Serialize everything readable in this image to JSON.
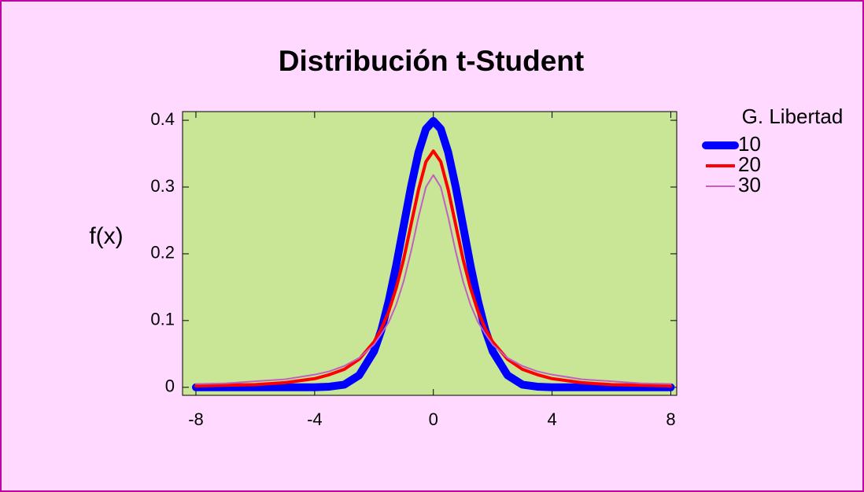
{
  "chart_data": {
    "type": "line",
    "title": "Distribución t-Student",
    "ylabel": "f(x)",
    "legend_title": "G. Libertad",
    "legend": "right",
    "x": [
      -8,
      -7,
      -6,
      -5,
      -4,
      -3.5,
      -3,
      -2.5,
      -2,
      -1.75,
      -1.5,
      -1.25,
      -1,
      -0.75,
      -0.5,
      -0.25,
      0,
      0.25,
      0.5,
      0.75,
      1,
      1.25,
      1.5,
      1.75,
      2,
      2.5,
      3,
      3.5,
      4,
      5,
      6,
      7,
      8
    ],
    "series": [
      {
        "name": "10",
        "color": "#0000ff",
        "line_width": 10,
        "values": [
          0,
          0,
          0,
          0,
          0,
          0.001,
          0.004,
          0.018,
          0.054,
          0.086,
          0.13,
          0.183,
          0.242,
          0.301,
          0.352,
          0.387,
          0.399,
          0.387,
          0.352,
          0.301,
          0.242,
          0.183,
          0.13,
          0.086,
          0.054,
          0.018,
          0.004,
          0.001,
          0,
          0,
          0,
          0,
          0
        ]
      },
      {
        "name": "20",
        "color": "#ff0000",
        "line_width": 4,
        "values": [
          0.002,
          0.003,
          0.004,
          0.007,
          0.013,
          0.019,
          0.027,
          0.042,
          0.068,
          0.088,
          0.114,
          0.149,
          0.192,
          0.244,
          0.296,
          0.338,
          0.354,
          0.338,
          0.296,
          0.244,
          0.192,
          0.149,
          0.114,
          0.088,
          0.068,
          0.042,
          0.027,
          0.019,
          0.013,
          0.007,
          0.004,
          0.003,
          0.002
        ]
      },
      {
        "name": "30",
        "color": "#c060c0",
        "line_width": 2,
        "values": [
          0.005,
          0.006,
          0.009,
          0.012,
          0.019,
          0.024,
          0.032,
          0.044,
          0.064,
          0.08,
          0.098,
          0.124,
          0.159,
          0.204,
          0.255,
          0.3,
          0.318,
          0.3,
          0.255,
          0.204,
          0.159,
          0.124,
          0.098,
          0.08,
          0.064,
          0.044,
          0.032,
          0.024,
          0.019,
          0.012,
          0.009,
          0.006,
          0.005
        ]
      }
    ],
    "xlim": [
      -8.45,
      8.2
    ],
    "ylim": [
      -0.012,
      0.413
    ],
    "xticks": [
      -8,
      -4,
      0,
      4,
      8
    ],
    "yticks": [
      0,
      0.1,
      0.2,
      0.3,
      0.4
    ]
  }
}
